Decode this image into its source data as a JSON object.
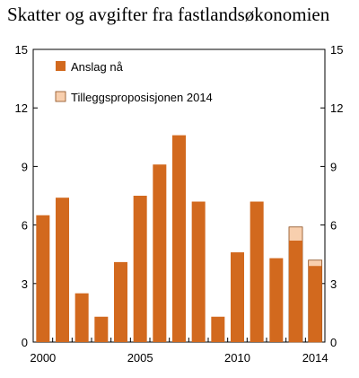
{
  "chart_data": {
    "type": "bar",
    "title": "Skatter og avgifter fra fastlandsøkonomien",
    "x": [
      2000,
      2001,
      2002,
      2003,
      2004,
      2005,
      2006,
      2007,
      2008,
      2009,
      2010,
      2011,
      2012,
      2013,
      2014
    ],
    "x_tick_labels": [
      "2000",
      "2005",
      "2010",
      "2014"
    ],
    "x_tick_values": [
      2000,
      2005,
      2010,
      2014
    ],
    "series": [
      {
        "name": "Anslag nå",
        "color": "#d2691e",
        "values": [
          6.5,
          7.4,
          2.5,
          1.3,
          4.1,
          7.5,
          9.1,
          10.6,
          7.2,
          1.3,
          4.6,
          7.2,
          4.3,
          5.2,
          3.9
        ]
      },
      {
        "name": "Tilleggsproposisjonen 2014",
        "color": "#f8cfae",
        "values": [
          null,
          null,
          null,
          null,
          null,
          null,
          null,
          null,
          null,
          null,
          null,
          null,
          null,
          5.9,
          4.2
        ]
      }
    ],
    "ylim": [
      0,
      15
    ],
    "y_ticks": [
      0,
      3,
      6,
      9,
      12,
      15
    ],
    "y_axis_left_labels": [
      "0",
      "3",
      "6",
      "9",
      "12",
      "15"
    ],
    "y_axis_right_labels": [
      "0",
      "3",
      "6",
      "9",
      "12",
      "15"
    ],
    "legend": {
      "placement": "top-left"
    },
    "grid": false
  }
}
